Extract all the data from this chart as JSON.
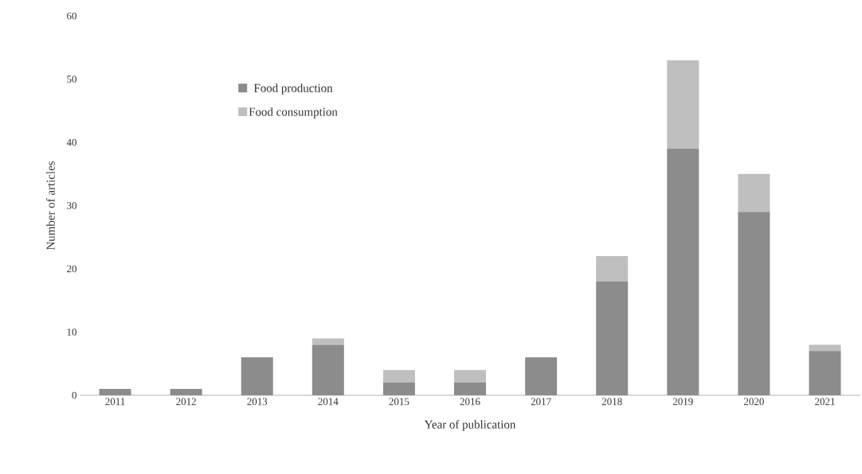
{
  "chart_data": {
    "type": "bar",
    "stacked": true,
    "xlabel": "Year of publication",
    "ylabel": "Number of articles",
    "categories": [
      "2011",
      "2012",
      "2013",
      "2014",
      "2015",
      "2016",
      "2017",
      "2018",
      "2019",
      "2020",
      "2021"
    ],
    "series": [
      {
        "name": "Food production",
        "color": "#8c8c8c",
        "values": [
          1,
          1,
          6,
          8,
          2,
          2,
          6,
          18,
          39,
          29,
          7
        ]
      },
      {
        "name": "Food consumption",
        "color": "#bfbfbf",
        "values": [
          0,
          0,
          0,
          1,
          2,
          2,
          0,
          4,
          14,
          6,
          1
        ]
      }
    ],
    "ylim": [
      0,
      60
    ],
    "yticks": [
      0,
      10,
      20,
      30,
      40,
      50,
      60
    ],
    "grid": false,
    "legend": "top left"
  }
}
